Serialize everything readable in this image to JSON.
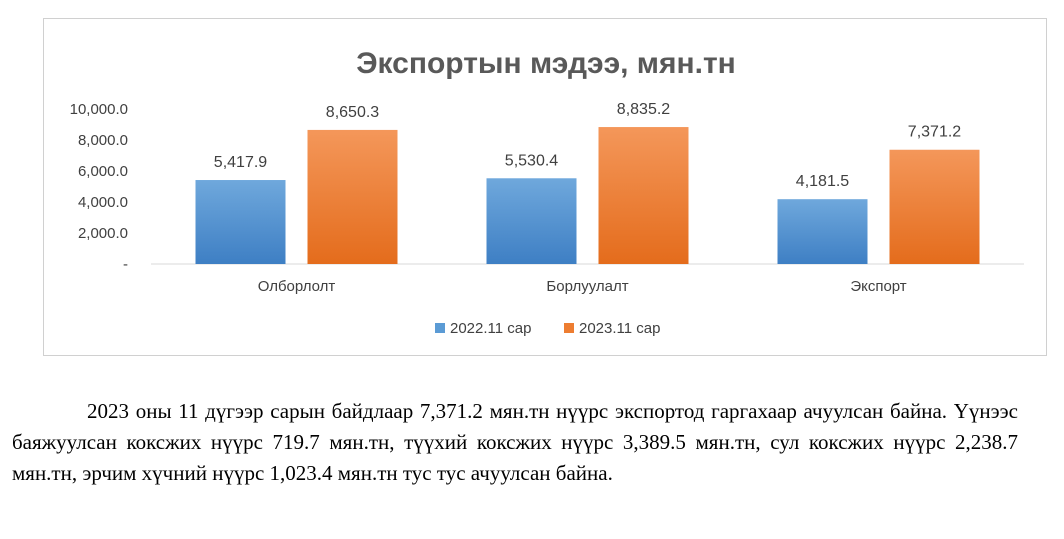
{
  "chart_data": {
    "type": "bar",
    "title": "Экспортын мэдээ, мян.тн",
    "categories": [
      "Олборлолт",
      "Борлуулалт",
      "Экспорт"
    ],
    "series": [
      {
        "name": "2022.11 сар",
        "color": "#5b9bd5",
        "values": [
          5417.9,
          5530.4,
          4181.5
        ],
        "labels": [
          "5,417.9",
          "5,530.4",
          "4,181.5"
        ]
      },
      {
        "name": "2023.11 сар",
        "color": "#ed7d31",
        "values": [
          8650.3,
          8835.2,
          7371.2
        ],
        "labels": [
          "8,650.3",
          "8,835.2",
          "7,371.2"
        ]
      }
    ],
    "ylim": [
      0,
      10000
    ],
    "yticks": [
      0,
      2000,
      4000,
      6000,
      8000,
      10000
    ],
    "ytick_labels": [
      "-",
      "2,000.0",
      "4,000.0",
      "6,000.0",
      "8,000.0",
      "10,000.0"
    ],
    "grid": false,
    "legend_position": "bottom"
  },
  "paragraph": {
    "text": "2023 оны 11 дүгээр сарын байдлаар 7,371.2 мян.тн нүүрс экспортод гаргахаар ачуулсан байна. Үүнээс баяжуулсан коксжих нүүрс 719.7 мян.тн, түүхий коксжих нүүрс 3,389.5 мян.тн, сул коксжих нүүрс 2,238.7 мян.тн, эрчим хүчний нүүрс 1,023.4 мян.тн тус тус ачуулсан байна."
  }
}
